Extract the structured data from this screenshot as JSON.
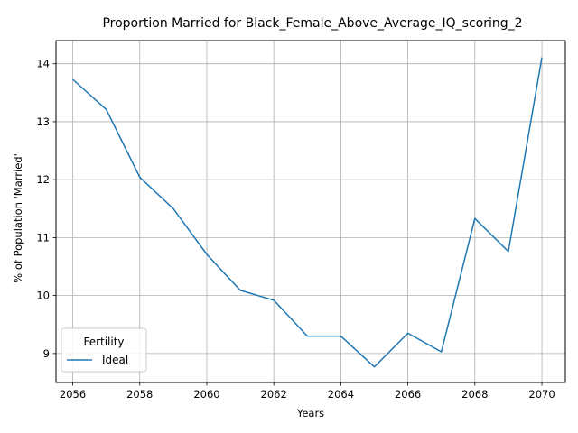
{
  "chart_data": {
    "type": "line",
    "title": "Proportion Married for Black_Female_Above_Average_IQ_scoring_2",
    "xlabel": "Years",
    "ylabel": "% of Population 'Married'",
    "xlim": [
      2055.5,
      2070.7
    ],
    "ylim": [
      8.5,
      14.4
    ],
    "xticks": [
      2056,
      2058,
      2060,
      2062,
      2064,
      2066,
      2068,
      2070
    ],
    "yticks": [
      9,
      10,
      11,
      12,
      13,
      14
    ],
    "grid": true,
    "legend": {
      "title": "Fertility",
      "placement": "lower-left"
    },
    "series": [
      {
        "name": "Ideal",
        "color": "#1f77b4",
        "x": [
          2056,
          2057,
          2058,
          2059,
          2060,
          2061,
          2062,
          2063,
          2064,
          2065,
          2066,
          2067,
          2068,
          2069,
          2070
        ],
        "y": [
          13.73,
          13.21,
          12.04,
          11.5,
          10.71,
          10.09,
          9.92,
          9.3,
          9.3,
          8.77,
          9.35,
          9.03,
          11.33,
          10.76,
          14.11
        ]
      }
    ]
  }
}
